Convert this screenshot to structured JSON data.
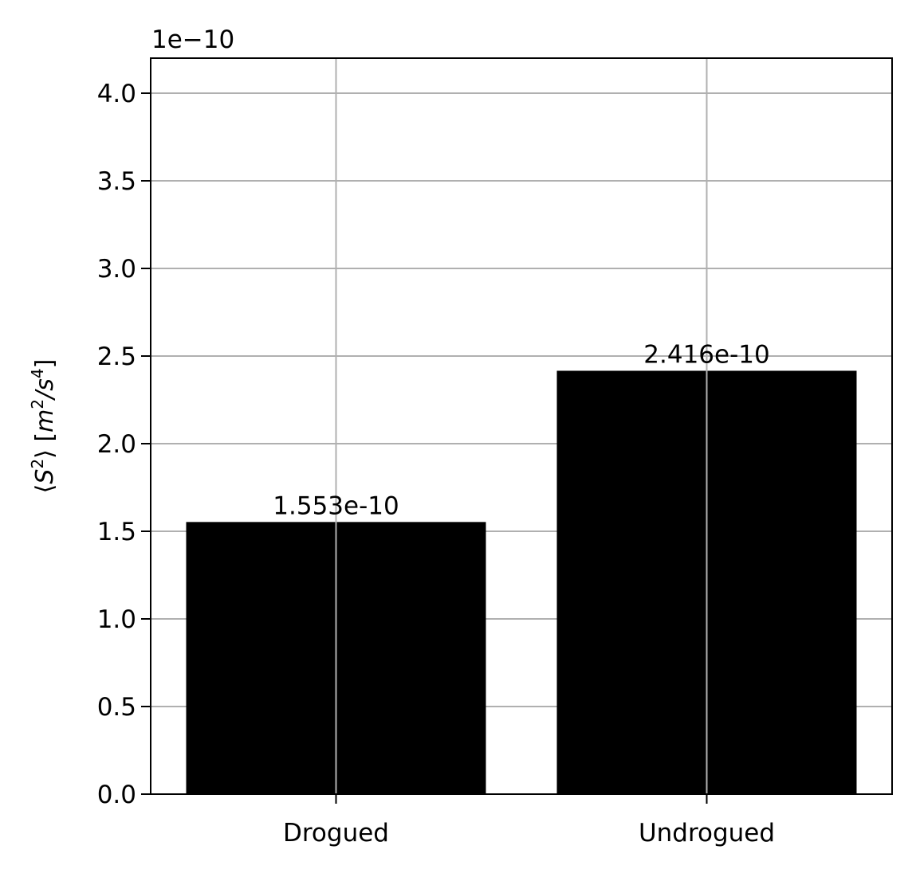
{
  "chart_data": {
    "type": "bar",
    "categories": [
      "Drogued",
      "Undrogued"
    ],
    "values": [
      1.553e-10,
      2.416e-10
    ],
    "bar_labels": [
      "1.553e-10",
      "2.416e-10"
    ],
    "title": "",
    "xlabel": "",
    "ylabel_parts": {
      "open": "⟨",
      "S": "S",
      "sup2": "2",
      "close": "⟩ [",
      "m": "m",
      "sup_m": "2",
      "slash": "/",
      "s": "s",
      "sup_s": "4",
      "end": "]"
    },
    "ylim": [
      0,
      4.2e-10
    ],
    "y_ticks": [
      0,
      5e-11,
      1e-10,
      1.5e-10,
      2e-10,
      2.5e-10,
      3e-10,
      3.5e-10,
      4e-10
    ],
    "y_tick_labels": [
      "0.0",
      "0.5",
      "1.0",
      "1.5",
      "2.0",
      "2.5",
      "3.0",
      "3.5",
      "4.0"
    ],
    "y_offset_label": "1e−10",
    "grid": true,
    "bar_color": "#000000",
    "grid_color": "#b0b0b0",
    "legend": "none"
  }
}
